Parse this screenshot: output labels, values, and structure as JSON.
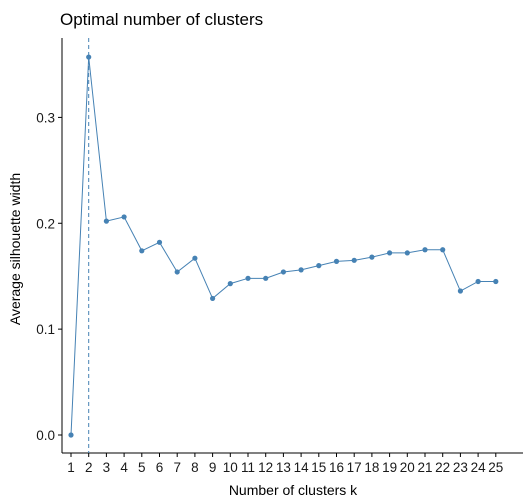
{
  "chart_data": {
    "type": "line",
    "title": "Optimal number of clusters",
    "xlabel": "Number of clusters k",
    "ylabel": "Average silhouette width",
    "x": [
      "1",
      "2",
      "3",
      "4",
      "5",
      "6",
      "7",
      "8",
      "9",
      "10",
      "11",
      "12",
      "13",
      "14",
      "15",
      "16",
      "17",
      "18",
      "19",
      "20",
      "21",
      "22",
      "23",
      "24",
      "25"
    ],
    "values": [
      0.0,
      0.357,
      0.202,
      0.206,
      0.174,
      0.182,
      0.154,
      0.167,
      0.129,
      0.143,
      0.148,
      0.148,
      0.154,
      0.156,
      0.16,
      0.164,
      0.165,
      0.168,
      0.172,
      0.172,
      0.175,
      0.175,
      0.136,
      0.145,
      0.145
    ],
    "yticks": [
      "0.0",
      "0.1",
      "0.2",
      "0.3"
    ],
    "ylim": [
      -0.017,
      0.375
    ],
    "optimal_k": 2,
    "grid": false,
    "colors": {
      "series": "#4682b4",
      "axis": "#000000"
    }
  }
}
